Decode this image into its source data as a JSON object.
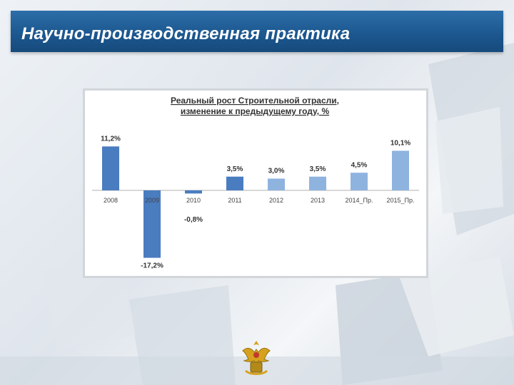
{
  "header": {
    "title": "Научно-производственная практика"
  },
  "chart_data": {
    "type": "bar",
    "title": "Реальный рост Строительной отрасли, изменение к предыдущему году, %",
    "title_lines": [
      "Реальный рост Строительной отрасли,",
      "изменение к предыдущему году, %"
    ],
    "categories": [
      "2008",
      "2009",
      "2010",
      "2011",
      "2012",
      "2013",
      "2014_Пр.",
      "2015_Пр."
    ],
    "values": [
      11.2,
      -17.2,
      -0.8,
      3.5,
      3.0,
      3.5,
      4.5,
      10.1
    ],
    "value_labels": [
      "11,2%",
      "-17,2%",
      "-0,8%",
      "3,5%",
      "3,0%",
      "3,5%",
      "4,5%",
      "10,1%"
    ],
    "xlabel": "",
    "ylabel": "",
    "grid": false,
    "bar_colors": [
      "#4a7cc0",
      "#4a7cc0",
      "#4a7cc0",
      "#4a7cc0",
      "#8fb3df",
      "#8fb3df",
      "#8fb3df",
      "#8fb3df"
    ]
  },
  "colors": {
    "header": "#1d5890",
    "bar_actual": "#4a7cc0",
    "bar_light": "#8fb3df"
  },
  "emblem_icon": "coat-of-arms-icon"
}
